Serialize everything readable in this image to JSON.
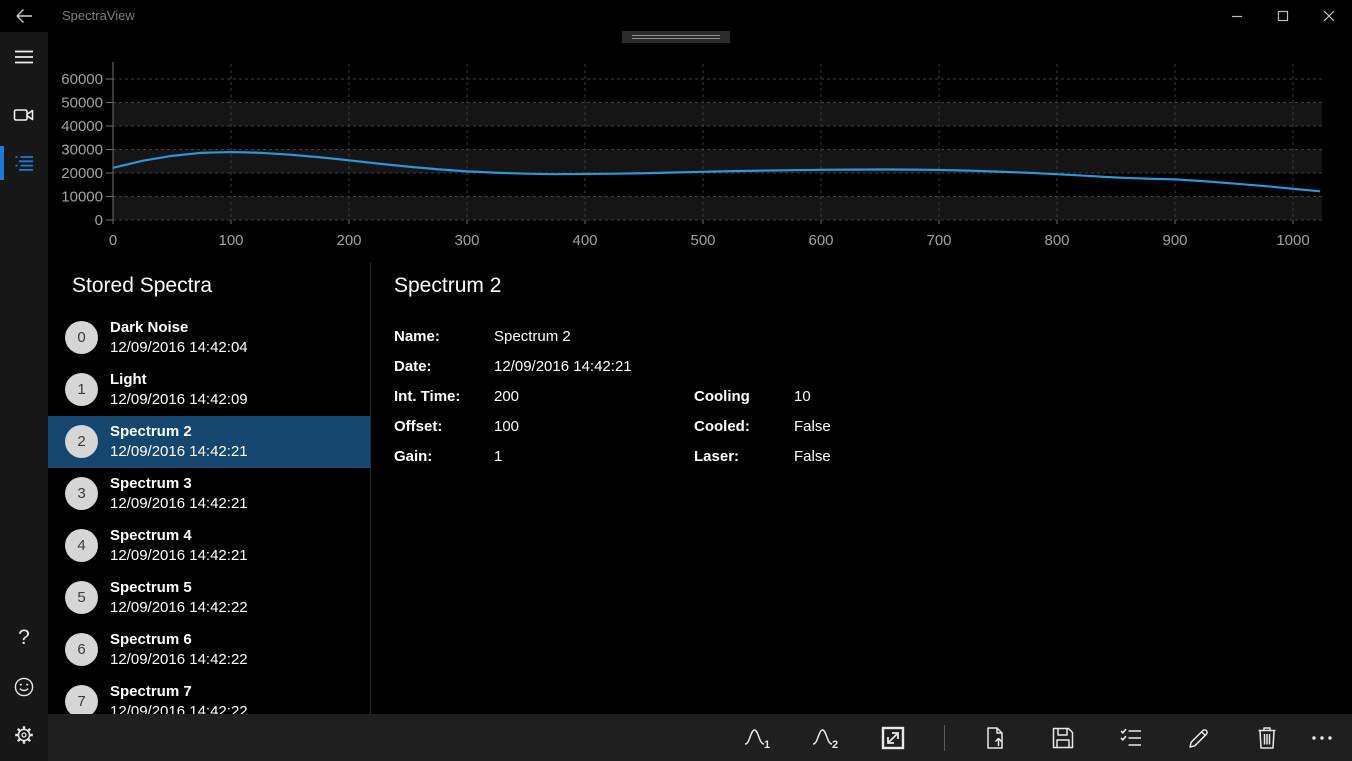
{
  "titlebar": {
    "title": "SpectraView",
    "icons": [
      "back-arrow-icon",
      "minimize-icon",
      "maximize-icon",
      "close-icon"
    ]
  },
  "sidebar": {
    "top_icons": [
      "hamburger-menu-icon",
      "video-camera-icon",
      "spectra-list-icon"
    ],
    "selected_icon": "spectra-list-icon",
    "bottom_icons": [
      "help-icon",
      "smiley-feedback-icon",
      "settings-gear-icon"
    ]
  },
  "colors": {
    "accent": "#1e7ad4",
    "selection_background": "#15466e",
    "chart_line": "#2997d8",
    "band": "#151515",
    "gridline": "#3d3d3d",
    "axis": "#6e6e6e",
    "tick_text": "#a2a2a2",
    "toolbar_background": "#1f1f1f",
    "sidebar_background": "#171717"
  },
  "chart_data": {
    "type": "line",
    "title": "",
    "xlabel": "",
    "ylabel": "",
    "legend": "none",
    "grid": "dashed",
    "xlim": [
      0,
      1024
    ],
    "ylim": [
      0,
      60000
    ],
    "x_ticks": [
      0,
      100,
      200,
      300,
      400,
      500,
      600,
      700,
      800,
      900,
      1000
    ],
    "y_ticks": [
      0,
      10000,
      20000,
      30000,
      40000,
      50000,
      60000
    ],
    "band_ranges": [
      [
        0,
        10000
      ],
      [
        20000,
        30000
      ],
      [
        40000,
        50000
      ]
    ],
    "line_color": "#2997d8",
    "x": [
      0,
      25,
      50,
      75,
      100,
      125,
      150,
      175,
      200,
      225,
      250,
      275,
      300,
      325,
      350,
      375,
      400,
      425,
      450,
      475,
      500,
      525,
      550,
      575,
      600,
      625,
      650,
      675,
      700,
      725,
      750,
      775,
      800,
      825,
      850,
      875,
      900,
      925,
      950,
      975,
      1000,
      1023
    ],
    "y": [
      22200,
      25200,
      27300,
      28600,
      28900,
      28600,
      27800,
      26700,
      25400,
      24000,
      22700,
      21600,
      20700,
      20100,
      19700,
      19500,
      19600,
      19700,
      19900,
      20200,
      20500,
      20800,
      21000,
      21200,
      21350,
      21450,
      21500,
      21450,
      21300,
      21000,
      20600,
      20100,
      19500,
      18800,
      18100,
      17600,
      17300,
      16500,
      15500,
      14500,
      13300,
      12200
    ]
  },
  "stored": {
    "header": "Stored Spectra",
    "items": [
      {
        "index": "0",
        "name": "Dark Noise",
        "date": "12/09/2016 14:42:04",
        "selected": false
      },
      {
        "index": "1",
        "name": "Light",
        "date": "12/09/2016 14:42:09",
        "selected": false
      },
      {
        "index": "2",
        "name": "Spectrum 2",
        "date": "12/09/2016 14:42:21",
        "selected": true
      },
      {
        "index": "3",
        "name": "Spectrum 3",
        "date": "12/09/2016 14:42:21",
        "selected": false
      },
      {
        "index": "4",
        "name": "Spectrum 4",
        "date": "12/09/2016 14:42:21",
        "selected": false
      },
      {
        "index": "5",
        "name": "Spectrum 5",
        "date": "12/09/2016 14:42:22",
        "selected": false
      },
      {
        "index": "6",
        "name": "Spectrum 6",
        "date": "12/09/2016 14:42:22",
        "selected": false
      },
      {
        "index": "7",
        "name": "Spectrum 7",
        "date": "12/09/2016 14:42:22",
        "selected": false
      }
    ]
  },
  "details": {
    "title": "Spectrum 2",
    "rows": [
      {
        "label": "Name:",
        "value": "Spectrum 2",
        "label2": "",
        "value2": ""
      },
      {
        "label": "Date:",
        "value": "12/09/2016 14:42:21",
        "label2": "",
        "value2": ""
      },
      {
        "label": "Int. Time:",
        "value": "200",
        "label2": "Cooling",
        "value2": "10"
      },
      {
        "label": "Offset:",
        "value": "100",
        "label2": "Cooled:",
        "value2": "False"
      },
      {
        "label": "Gain:",
        "value": "1",
        "label2": "Laser:",
        "value2": "False"
      }
    ]
  },
  "toolbar": {
    "icons": [
      "spectrum-1-icon",
      "spectrum-2-icon",
      "autoscale-resize-icon",
      "separator",
      "export-file-icon",
      "save-icon",
      "checklist-icon",
      "edit-pencil-icon",
      "delete-trash-icon",
      "more-ellipsis-icon"
    ],
    "more_label": "•••"
  }
}
